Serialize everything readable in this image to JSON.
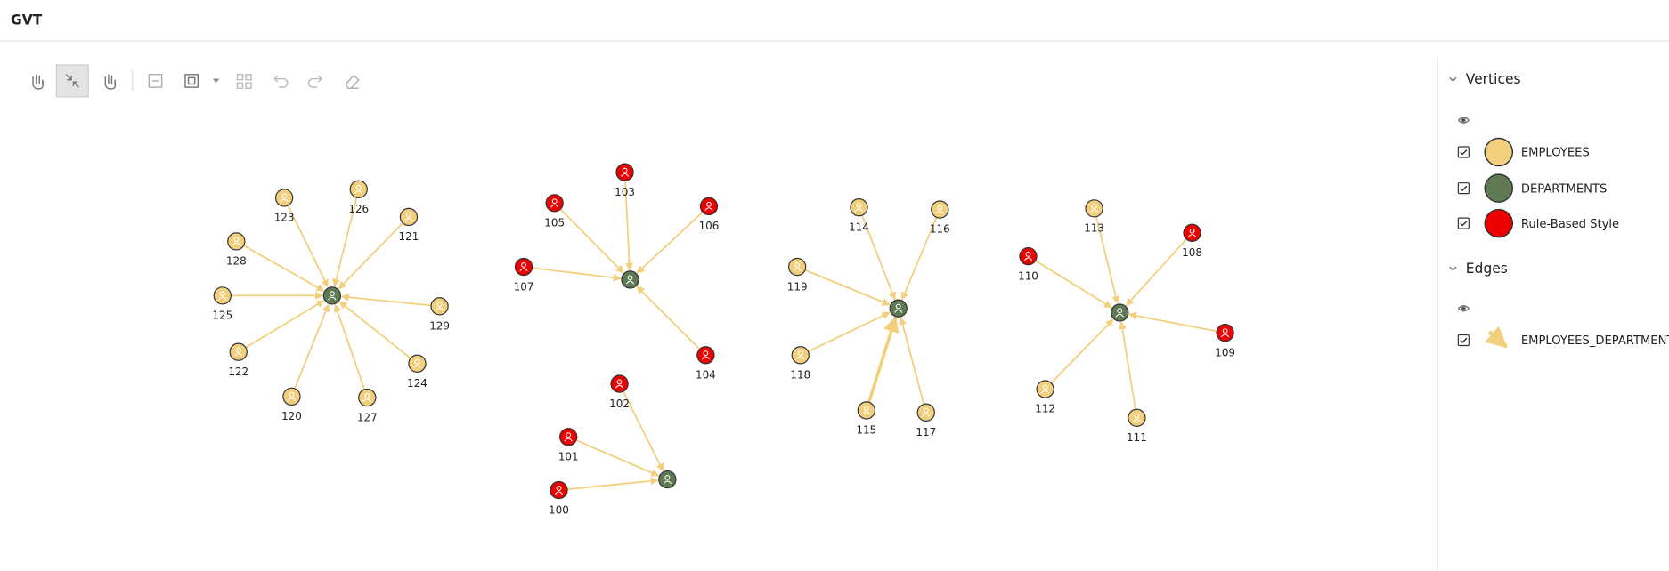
{
  "header": {
    "title": "GVT"
  },
  "legend": {
    "vertices": {
      "title": "Vertices",
      "items": [
        {
          "label": "EMPLOYEES",
          "color": "#f2cf7c"
        },
        {
          "label": "DEPARTMENTS",
          "color": "#5f7a52"
        },
        {
          "label": "Rule-Based Style",
          "color": "#ee0000"
        }
      ]
    },
    "edges": {
      "title": "Edges",
      "items": [
        {
          "label": "EMPLOYEES_DEPARTMENTS",
          "color": "#f2cf7c"
        }
      ]
    }
  },
  "graph": {
    "nodes": [
      "123",
      "126",
      "121",
      "128",
      "125",
      "129",
      "122",
      "124",
      "120",
      "127",
      "103",
      "105",
      "106",
      "107",
      "104",
      "102",
      "101",
      "100",
      "114",
      "116",
      "119",
      "118",
      "115",
      "117",
      "113",
      "108",
      "110",
      "109",
      "112",
      "111"
    ]
  }
}
